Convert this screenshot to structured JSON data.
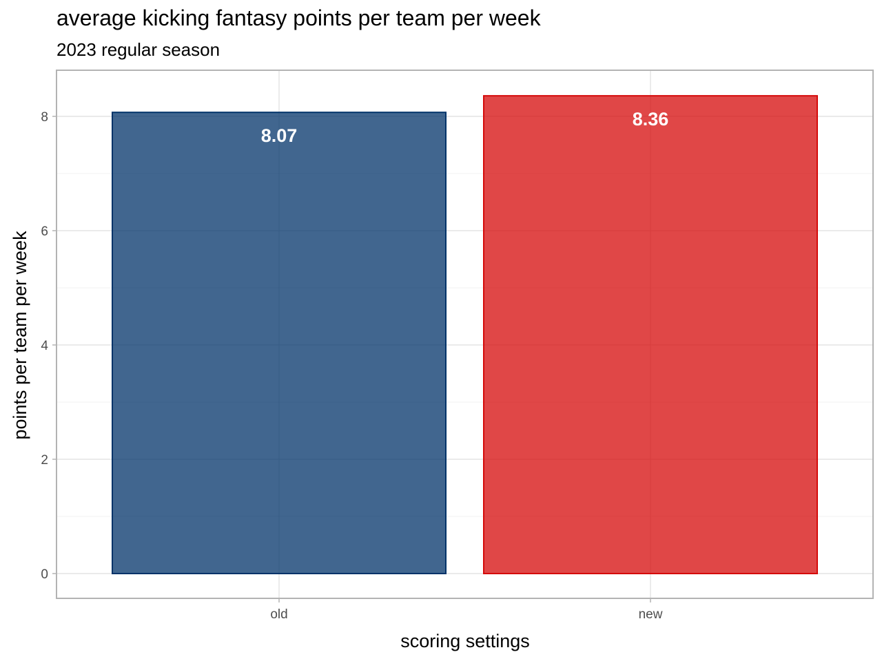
{
  "chart_data": {
    "type": "bar",
    "title": "average kicking fantasy points per team per week",
    "subtitle": "2023 regular season",
    "xlabel": "scoring settings",
    "ylabel": "points per team per week",
    "categories": [
      "old",
      "new"
    ],
    "values": [
      8.07,
      8.36
    ],
    "data_labels": [
      "8.07",
      "8.36"
    ],
    "ylim": [
      0,
      8.8
    ],
    "yticks": [
      0,
      2,
      4,
      6,
      8
    ],
    "grid": true,
    "legend": "none",
    "colors": {
      "old": {
        "fill": "#013369",
        "stroke": "#013369"
      },
      "new": {
        "fill": "#d50a0a",
        "stroke": "#d50a0a"
      }
    }
  }
}
